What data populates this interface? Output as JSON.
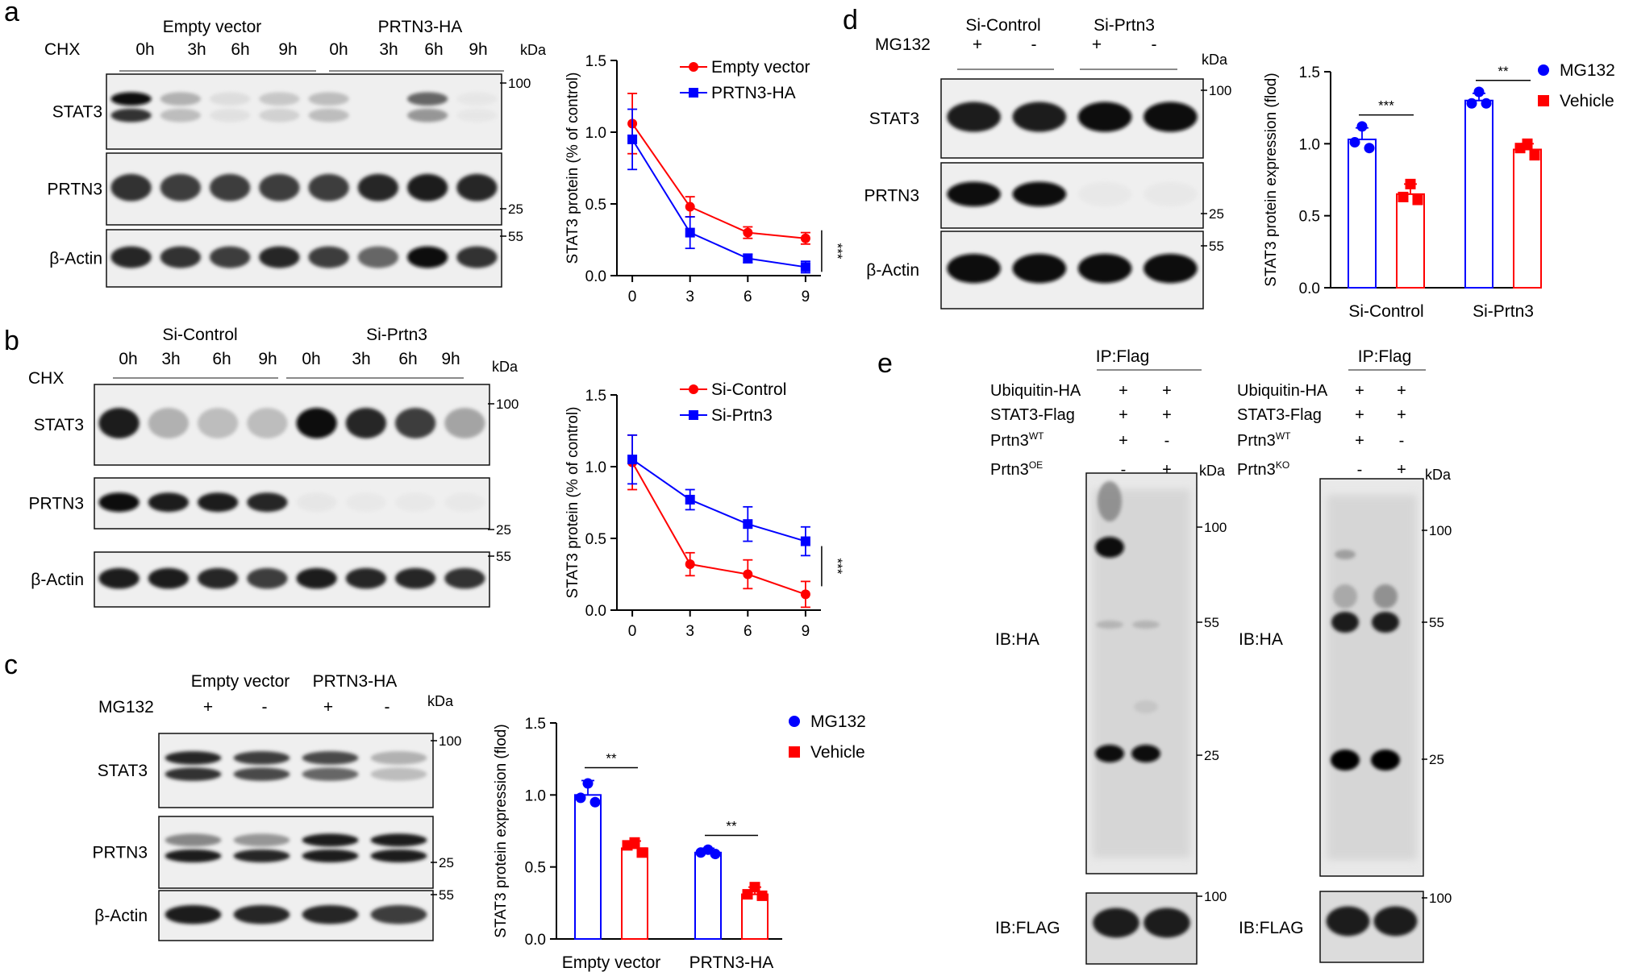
{
  "panels": {
    "a": {
      "letter": "a",
      "treatment_label": "CHX",
      "groups": [
        "Empty vector",
        "PRTN3-HA"
      ],
      "lanes": [
        "0h",
        "3h",
        "6h",
        "9h",
        "0h",
        "3h",
        "6h",
        "9h"
      ],
      "kda_label": "kDa",
      "blots": [
        {
          "label": "STAT3",
          "markers": [
            "100"
          ],
          "bands": [
            [
              0.95,
              0.8
            ],
            [
              0.35,
              0.3
            ],
            [
              0.12,
              0.1
            ],
            [
              0.25,
              0.2
            ],
            [
              0.3,
              0.3
            ],
            [
              0.0,
              0.0
            ],
            [
              0.6,
              0.45
            ],
            [
              0.05,
              0.05
            ]
          ]
        },
        {
          "label": "PRTN3",
          "markers": [
            "25"
          ],
          "bands": [
            [
              0.8
            ],
            [
              0.75
            ],
            [
              0.75
            ],
            [
              0.75
            ],
            [
              0.75
            ],
            [
              0.85
            ],
            [
              0.9
            ],
            [
              0.85
            ]
          ]
        },
        {
          "label": "β-Actin",
          "markers": [
            "55"
          ],
          "bands": [
            [
              0.85
            ],
            [
              0.8
            ],
            [
              0.75
            ],
            [
              0.85
            ],
            [
              0.75
            ],
            [
              0.6
            ],
            [
              0.95
            ],
            [
              0.8
            ]
          ]
        }
      ]
    },
    "b": {
      "letter": "b",
      "treatment_label": "CHX",
      "groups": [
        "Si-Control",
        "Si-Prtn3"
      ],
      "lanes": [
        "0h",
        "3h",
        "6h",
        "9h",
        "0h",
        "3h",
        "6h",
        "9h"
      ],
      "kda_label": "kDa",
      "blots": [
        {
          "label": "STAT3",
          "markers": [
            "100"
          ],
          "bands": [
            [
              0.9
            ],
            [
              0.35
            ],
            [
              0.3
            ],
            [
              0.3
            ],
            [
              0.95
            ],
            [
              0.85
            ],
            [
              0.75
            ],
            [
              0.4
            ]
          ]
        },
        {
          "label": "PRTN3",
          "markers": [
            "25"
          ],
          "bands": [
            [
              0.95
            ],
            [
              0.9
            ],
            [
              0.9
            ],
            [
              0.85
            ],
            [
              0.05
            ],
            [
              0.03
            ],
            [
              0.03
            ],
            [
              0.03
            ]
          ]
        },
        {
          "label": "β-Actin",
          "markers": [
            "55"
          ],
          "bands": [
            [
              0.9
            ],
            [
              0.9
            ],
            [
              0.85
            ],
            [
              0.75
            ],
            [
              0.9
            ],
            [
              0.85
            ],
            [
              0.85
            ],
            [
              0.8
            ]
          ]
        }
      ]
    },
    "c": {
      "letter": "c",
      "treatment_label": "MG132",
      "groups": [
        "Empty vector",
        "PRTN3-HA"
      ],
      "lanes": [
        "+",
        "-",
        "+",
        "-"
      ],
      "kda_label": "kDa",
      "blots": [
        {
          "label": "STAT3",
          "markers": [
            "100"
          ],
          "bands": [
            [
              0.85,
              0.8
            ],
            [
              0.75,
              0.7
            ],
            [
              0.7,
              0.6
            ],
            [
              0.35,
              0.3
            ]
          ]
        },
        {
          "label": "PRTN3",
          "markers": [
            "25"
          ],
          "bands": [
            [
              0.5,
              0.9
            ],
            [
              0.45,
              0.85
            ],
            [
              0.9,
              0.9
            ],
            [
              0.9,
              0.9
            ]
          ]
        },
        {
          "label": "β-Actin",
          "markers": [
            "55"
          ],
          "bands": [
            [
              0.9
            ],
            [
              0.85
            ],
            [
              0.85
            ],
            [
              0.75
            ]
          ]
        }
      ]
    },
    "d": {
      "letter": "d",
      "treatment_label": "MG132",
      "groups": [
        "Si-Control",
        "Si-Prtn3"
      ],
      "lanes": [
        "+",
        "-",
        "+",
        "-"
      ],
      "kda_label": "kDa",
      "blots": [
        {
          "label": "STAT3",
          "markers": [
            "100"
          ],
          "bands": [
            [
              0.9
            ],
            [
              0.9
            ],
            [
              0.95
            ],
            [
              0.95
            ]
          ]
        },
        {
          "label": "PRTN3",
          "markers": [
            "25"
          ],
          "bands": [
            [
              0.95
            ],
            [
              0.95
            ],
            [
              0.03
            ],
            [
              0.03
            ]
          ]
        },
        {
          "label": "β-Actin",
          "markers": [
            "55"
          ],
          "bands": [
            [
              0.95
            ],
            [
              0.95
            ],
            [
              0.95
            ],
            [
              0.95
            ]
          ]
        }
      ]
    },
    "e": {
      "letter": "e",
      "left": {
        "ip_label": "IP:Flag",
        "row_labels": [
          "Ubiquitin-HA",
          "STAT3-Flag",
          "Prtn3",
          "Prtn3"
        ],
        "row_sups": [
          "",
          "",
          "WT",
          "OE"
        ],
        "signs": [
          [
            "+",
            "+"
          ],
          [
            "+",
            "+"
          ],
          [
            "+",
            "-"
          ],
          [
            "-",
            "+"
          ]
        ],
        "kda_label": "kDa",
        "ib_labels": [
          "IB:HA",
          "IB:FLAG"
        ],
        "markers_main": [
          "100",
          "55",
          "25"
        ],
        "markers_flag": [
          "100"
        ]
      },
      "right": {
        "ip_label": "IP:Flag",
        "row_labels": [
          "Ubiquitin-HA",
          "STAT3-Flag",
          "Prtn3",
          "Prtn3"
        ],
        "row_sups": [
          "",
          "",
          "WT",
          "KO"
        ],
        "signs": [
          [
            "+",
            "+"
          ],
          [
            "+",
            "+"
          ],
          [
            "+",
            "-"
          ],
          [
            "-",
            "+"
          ]
        ],
        "kda_label": "kDa",
        "ib_labels": [
          "IB:HA",
          "IB:FLAG"
        ],
        "markers_main": [
          "100",
          "55",
          "25"
        ],
        "markers_flag": [
          "100"
        ]
      }
    }
  },
  "chart_data": [
    {
      "id": "a-line",
      "type": "line",
      "x": [
        0,
        3,
        6,
        9
      ],
      "ylabel": "STAT3 protein (% of control)",
      "ylim": [
        0,
        1.5
      ],
      "yticks": [
        0.0,
        0.5,
        1.0,
        1.5
      ],
      "ytick_labels": [
        "0.0",
        "0.5",
        "1.0",
        "1.5"
      ],
      "xticks": [
        0,
        3,
        6,
        9
      ],
      "xtick_labels": [
        "0",
        "3",
        "6",
        "9"
      ],
      "legend_position": "top-right",
      "series": [
        {
          "name": "Empty vector",
          "color": "#ff0000",
          "marker": "circle",
          "values": [
            1.06,
            0.48,
            0.3,
            0.26
          ],
          "errors": [
            0.21,
            0.07,
            0.04,
            0.04
          ]
        },
        {
          "name": "PRTN3-HA",
          "color": "#0000ff",
          "marker": "square",
          "values": [
            0.95,
            0.3,
            0.12,
            0.06
          ],
          "errors": [
            0.21,
            0.11,
            0.03,
            0.04
          ]
        }
      ],
      "significance": "***"
    },
    {
      "id": "b-line",
      "type": "line",
      "x": [
        0,
        3,
        6,
        9
      ],
      "ylabel": "STAT3 protein (% of control)",
      "ylim": [
        0,
        1.5
      ],
      "yticks": [
        0.0,
        0.5,
        1.0,
        1.5
      ],
      "ytick_labels": [
        "0.0",
        "0.5",
        "1.0",
        "1.5"
      ],
      "xticks": [
        0,
        3,
        6,
        9
      ],
      "xtick_labels": [
        "0",
        "3",
        "6",
        "9"
      ],
      "legend_position": "top-right",
      "series": [
        {
          "name": "Si-Control",
          "color": "#ff0000",
          "marker": "circle",
          "values": [
            1.03,
            0.32,
            0.25,
            0.11
          ],
          "errors": [
            0.19,
            0.08,
            0.1,
            0.09
          ]
        },
        {
          "name": "Si-Prtn3",
          "color": "#0000ff",
          "marker": "square",
          "values": [
            1.05,
            0.77,
            0.6,
            0.48
          ],
          "errors": [
            0.17,
            0.07,
            0.12,
            0.1
          ]
        }
      ],
      "significance": "***"
    },
    {
      "id": "c-bar",
      "type": "bar",
      "categories": [
        "Empty vector",
        "PRTN3-HA"
      ],
      "ylabel": "STAT3 protein expression (flod)",
      "ylim": [
        0,
        1.5
      ],
      "yticks": [
        0.0,
        0.5,
        1.0,
        1.5
      ],
      "ytick_labels": [
        "0.0",
        "0.5",
        "1.0",
        "1.5"
      ],
      "legend_position": "right",
      "series": [
        {
          "name": "MG132",
          "color": "#0000ff",
          "marker": "circle",
          "values": [
            1.0,
            0.6
          ],
          "errors": [
            0.1,
            0.03
          ],
          "points": [
            [
              1.08,
              0.98,
              0.95
            ],
            [
              0.62,
              0.6,
              0.59
            ]
          ]
        },
        {
          "name": "Vehicle",
          "color": "#ff0000",
          "marker": "square",
          "values": [
            0.63,
            0.31
          ],
          "errors": [
            0.05,
            0.05
          ],
          "points": [
            [
              0.67,
              0.65,
              0.6
            ],
            [
              0.36,
              0.31,
              0.3
            ]
          ]
        }
      ],
      "significance": [
        "**",
        "**"
      ]
    },
    {
      "id": "d-bar",
      "type": "bar",
      "categories": [
        "Si-Control",
        "Si-Prtn3"
      ],
      "ylabel": "STAT3 protein expression (flod)",
      "ylim": [
        0,
        1.5
      ],
      "yticks": [
        0.0,
        0.5,
        1.0,
        1.5
      ],
      "ytick_labels": [
        "0.0",
        "0.5",
        "1.0",
        "1.5"
      ],
      "legend_position": "right",
      "series": [
        {
          "name": "MG132",
          "color": "#0000ff",
          "marker": "circle",
          "values": [
            1.03,
            1.3
          ],
          "errors": [
            0.08,
            0.05
          ],
          "points": [
            [
              1.12,
              1.01,
              0.97
            ],
            [
              1.36,
              1.28,
              1.28
            ]
          ]
        },
        {
          "name": "Vehicle",
          "color": "#ff0000",
          "marker": "square",
          "values": [
            0.65,
            0.96
          ],
          "errors": [
            0.07,
            0.04
          ],
          "points": [
            [
              0.72,
              0.63,
              0.61
            ],
            [
              1.0,
              0.97,
              0.92
            ]
          ]
        }
      ],
      "significance": [
        "***",
        "**"
      ]
    }
  ]
}
